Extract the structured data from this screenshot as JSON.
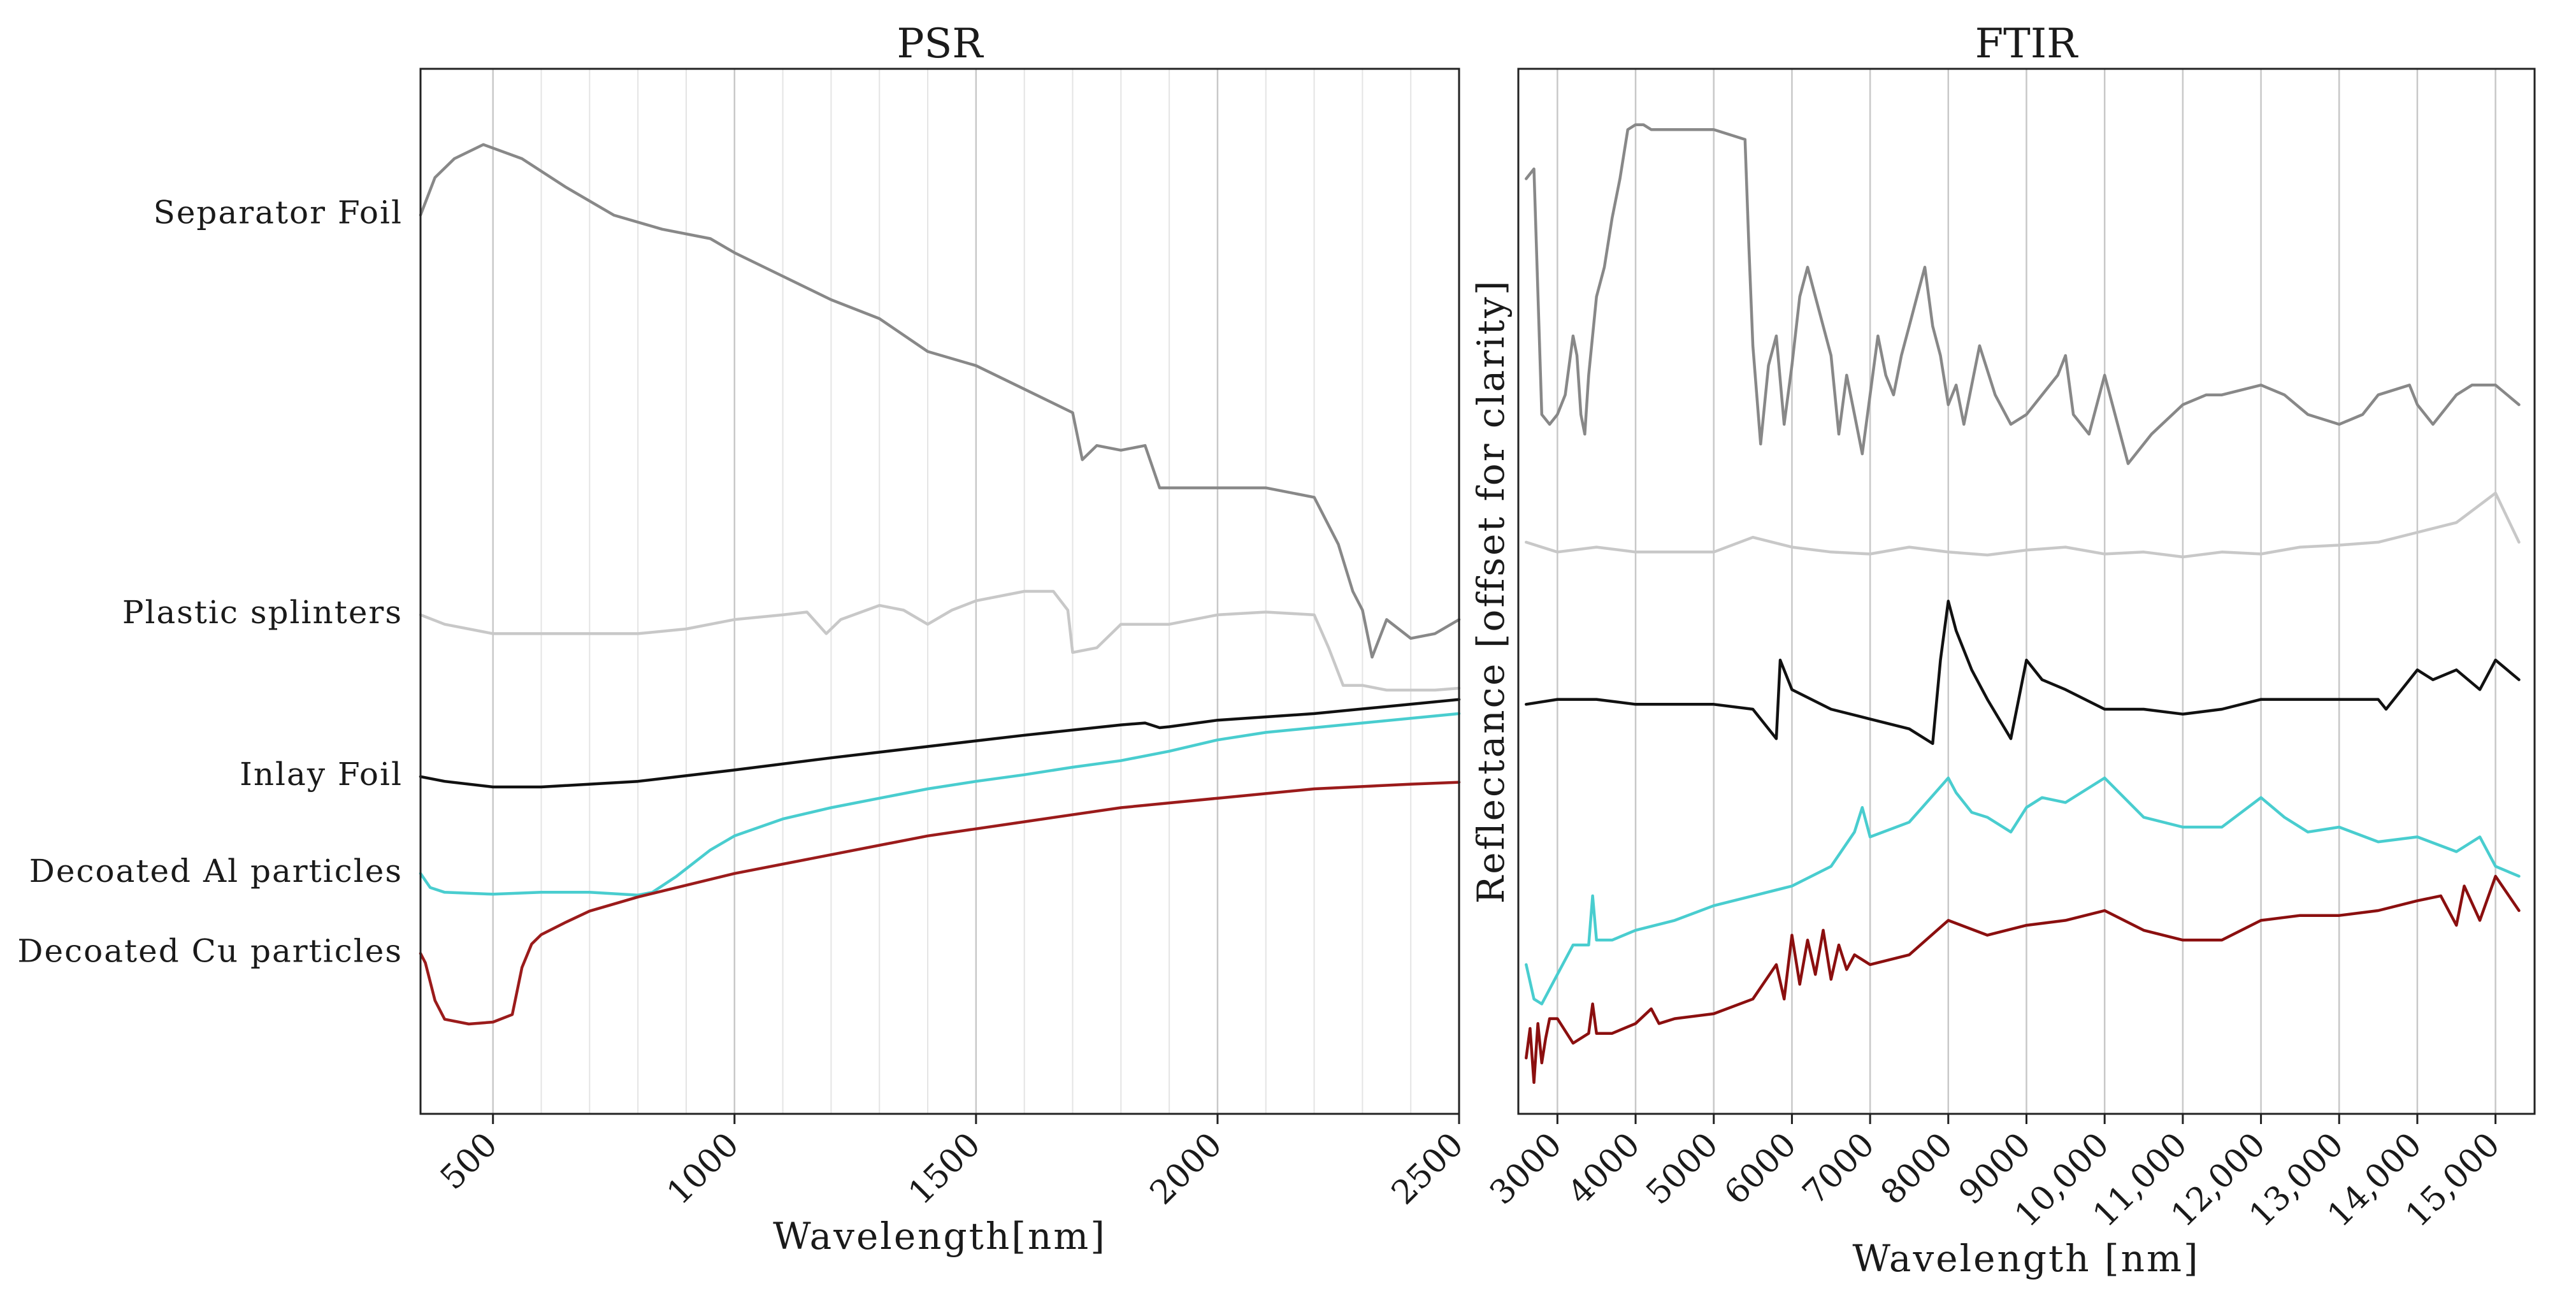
{
  "chart_data": [
    {
      "type": "line",
      "title": "PSR",
      "xlabel": "Wavelength[nm]",
      "ylabel": "",
      "xlim": [
        350,
        2500
      ],
      "ylim": [
        0,
        1
      ],
      "xticks": [
        500,
        1000,
        1500,
        2000,
        2500
      ],
      "xtick_labels": [
        "500",
        "1000",
        "1500",
        "2000",
        "2500"
      ],
      "minor_grid": [
        600,
        700,
        800,
        900,
        1100,
        1200,
        1300,
        1400,
        1600,
        1700,
        1800,
        1900,
        2100,
        2200,
        2300,
        2400
      ],
      "grid": true,
      "series": [
        {
          "name": "Separator Foil",
          "color": "#888888",
          "x": [
            350,
            380,
            420,
            480,
            560,
            650,
            750,
            850,
            950,
            1000,
            1100,
            1200,
            1300,
            1400,
            1500,
            1600,
            1700,
            1720,
            1750,
            1800,
            1850,
            1880,
            1900,
            1950,
            2000,
            2100,
            2200,
            2250,
            2280,
            2300,
            2320,
            2350,
            2400,
            2450,
            2500
          ],
          "y": [
            0.9,
            0.94,
            0.96,
            0.975,
            0.96,
            0.93,
            0.9,
            0.885,
            0.875,
            0.86,
            0.835,
            0.81,
            0.79,
            0.755,
            0.74,
            0.715,
            0.69,
            0.64,
            0.655,
            0.65,
            0.655,
            0.61,
            0.61,
            0.61,
            0.61,
            0.61,
            0.6,
            0.55,
            0.5,
            0.48,
            0.43,
            0.47,
            0.45,
            0.455,
            0.47
          ]
        },
        {
          "name": "Plastic splinters",
          "color": "#c8c8c8",
          "x": [
            350,
            400,
            500,
            600,
            700,
            800,
            900,
            1000,
            1100,
            1150,
            1190,
            1220,
            1300,
            1350,
            1400,
            1450,
            1500,
            1600,
            1660,
            1690,
            1700,
            1750,
            1800,
            1900,
            2000,
            2100,
            2200,
            2230,
            2260,
            2300,
            2350,
            2400,
            2450,
            2500
          ],
          "y": [
            0.475,
            0.465,
            0.455,
            0.455,
            0.455,
            0.455,
            0.46,
            0.47,
            0.475,
            0.478,
            0.455,
            0.47,
            0.485,
            0.48,
            0.465,
            0.48,
            0.49,
            0.5,
            0.5,
            0.48,
            0.435,
            0.44,
            0.465,
            0.465,
            0.475,
            0.478,
            0.475,
            0.44,
            0.4,
            0.4,
            0.395,
            0.395,
            0.395,
            0.397
          ]
        },
        {
          "name": "Inlay Foil",
          "color": "#111111",
          "x": [
            350,
            400,
            500,
            600,
            800,
            1000,
            1200,
            1400,
            1600,
            1800,
            1850,
            1880,
            1900,
            2000,
            2200,
            2400,
            2500
          ],
          "y": [
            0.303,
            0.298,
            0.292,
            0.292,
            0.298,
            0.31,
            0.323,
            0.335,
            0.347,
            0.358,
            0.36,
            0.355,
            0.356,
            0.363,
            0.37,
            0.38,
            0.385
          ]
        },
        {
          "name": "Decoated Al particles",
          "color": "#49cdcf",
          "x": [
            350,
            370,
            400,
            500,
            600,
            700,
            800,
            830,
            880,
            950,
            1000,
            1100,
            1200,
            1300,
            1400,
            1500,
            1600,
            1700,
            1800,
            1900,
            2000,
            2100,
            2200,
            2300,
            2400,
            2500
          ],
          "y": [
            0.2,
            0.185,
            0.18,
            0.178,
            0.18,
            0.18,
            0.177,
            0.18,
            0.197,
            0.225,
            0.24,
            0.258,
            0.27,
            0.28,
            0.29,
            0.298,
            0.305,
            0.313,
            0.32,
            0.33,
            0.342,
            0.35,
            0.355,
            0.36,
            0.365,
            0.37
          ]
        },
        {
          "name": "Decoated Cu particles",
          "color": "#9b1b1b",
          "x": [
            350,
            360,
            380,
            400,
            450,
            500,
            540,
            560,
            580,
            600,
            650,
            700,
            800,
            1000,
            1200,
            1400,
            1600,
            1800,
            2000,
            2200,
            2400,
            2500
          ],
          "y": [
            0.115,
            0.105,
            0.065,
            0.045,
            0.04,
            0.042,
            0.05,
            0.1,
            0.125,
            0.135,
            0.148,
            0.16,
            0.175,
            0.2,
            0.22,
            0.24,
            0.255,
            0.27,
            0.28,
            0.29,
            0.295,
            0.297
          ]
        }
      ]
    },
    {
      "type": "line",
      "title": "FTIR",
      "xlabel": "Wavelength [nm]",
      "ylabel": "Reflectance [offset for clarity]",
      "xlim": [
        2500,
        15500
      ],
      "ylim": [
        0,
        1
      ],
      "xticks": [
        3000,
        4000,
        5000,
        6000,
        7000,
        8000,
        9000,
        10000,
        11000,
        12000,
        13000,
        14000,
        15000
      ],
      "xtick_labels": [
        "3000",
        "4000",
        "5000",
        "6000",
        "7000",
        "8000",
        "9000",
        "10,000",
        "11,000",
        "12,000",
        "13,000",
        "14,000",
        "15,000"
      ],
      "grid": true,
      "series": [
        {
          "name": "Separator Foil",
          "color": "#888888",
          "x": [
            2600,
            2700,
            2800,
            2900,
            3000,
            3100,
            3200,
            3250,
            3300,
            3350,
            3400,
            3500,
            3600,
            3700,
            3800,
            3900,
            4000,
            4100,
            4200,
            4500,
            5000,
            5400,
            5450,
            5500,
            5600,
            5700,
            5800,
            5900,
            6000,
            6100,
            6200,
            6300,
            6400,
            6500,
            6600,
            6700,
            6800,
            6900,
            7000,
            7100,
            7200,
            7300,
            7400,
            7500,
            7600,
            7700,
            7800,
            7900,
            8000,
            8100,
            8200,
            8400,
            8600,
            8800,
            9000,
            9200,
            9400,
            9500,
            9600,
            9800,
            10000,
            10300,
            10600,
            11000,
            11300,
            11500,
            12000,
            12300,
            12600,
            13000,
            13300,
            13500,
            13900,
            14000,
            14200,
            14500,
            14700,
            15000,
            15300
          ],
          "y": [
            0.92,
            0.93,
            0.68,
            0.67,
            0.68,
            0.7,
            0.76,
            0.74,
            0.68,
            0.66,
            0.72,
            0.8,
            0.83,
            0.88,
            0.92,
            0.97,
            0.975,
            0.975,
            0.97,
            0.97,
            0.97,
            0.96,
            0.85,
            0.75,
            0.65,
            0.73,
            0.76,
            0.67,
            0.73,
            0.8,
            0.83,
            0.8,
            0.77,
            0.74,
            0.66,
            0.72,
            0.68,
            0.64,
            0.7,
            0.76,
            0.72,
            0.7,
            0.74,
            0.77,
            0.8,
            0.83,
            0.77,
            0.74,
            0.69,
            0.71,
            0.67,
            0.75,
            0.7,
            0.67,
            0.68,
            0.7,
            0.72,
            0.74,
            0.68,
            0.66,
            0.72,
            0.63,
            0.66,
            0.69,
            0.7,
            0.7,
            0.71,
            0.7,
            0.68,
            0.67,
            0.68,
            0.7,
            0.71,
            0.69,
            0.67,
            0.7,
            0.71,
            0.71,
            0.69
          ]
        },
        {
          "name": "Plastic splinters",
          "color": "#c8c8c8",
          "x": [
            2600,
            3000,
            3500,
            4000,
            4500,
            5000,
            5500,
            6000,
            6500,
            7000,
            7500,
            8000,
            8500,
            9000,
            9500,
            10000,
            10500,
            11000,
            11500,
            12000,
            12500,
            13000,
            13500,
            14000,
            14500,
            15000,
            15300
          ],
          "y": [
            0.55,
            0.54,
            0.545,
            0.54,
            0.54,
            0.54,
            0.555,
            0.545,
            0.54,
            0.538,
            0.545,
            0.54,
            0.537,
            0.542,
            0.545,
            0.538,
            0.54,
            0.535,
            0.54,
            0.538,
            0.545,
            0.547,
            0.55,
            0.56,
            0.57,
            0.6,
            0.55
          ]
        },
        {
          "name": "Inlay Foil",
          "color": "#111111",
          "x": [
            2600,
            3000,
            3500,
            4000,
            4500,
            5000,
            5500,
            5800,
            5850,
            6000,
            6500,
            7000,
            7500,
            7800,
            7900,
            8000,
            8100,
            8300,
            8500,
            8800,
            9000,
            9200,
            9500,
            10000,
            10500,
            11000,
            11500,
            12000,
            12500,
            13000,
            13500,
            13600,
            14000,
            14200,
            14500,
            14800,
            15000,
            15300
          ],
          "y": [
            0.385,
            0.39,
            0.39,
            0.385,
            0.385,
            0.385,
            0.38,
            0.35,
            0.43,
            0.4,
            0.38,
            0.37,
            0.36,
            0.345,
            0.43,
            0.49,
            0.46,
            0.42,
            0.39,
            0.35,
            0.43,
            0.41,
            0.4,
            0.38,
            0.38,
            0.375,
            0.38,
            0.39,
            0.39,
            0.39,
            0.39,
            0.38,
            0.42,
            0.41,
            0.42,
            0.4,
            0.43,
            0.41
          ]
        },
        {
          "name": "Decoated Al particles",
          "color": "#49cdcf",
          "x": [
            2600,
            2700,
            2800,
            3000,
            3200,
            3400,
            3450,
            3500,
            3700,
            4000,
            4500,
            5000,
            5500,
            6000,
            6500,
            6800,
            6900,
            7000,
            7500,
            8000,
            8100,
            8300,
            8500,
            8800,
            9000,
            9200,
            9500,
            10000,
            10500,
            11000,
            11500,
            12000,
            12300,
            12600,
            13000,
            13500,
            14000,
            14500,
            14800,
            15000,
            15300
          ],
          "y": [
            0.12,
            0.085,
            0.08,
            0.11,
            0.14,
            0.14,
            0.19,
            0.145,
            0.145,
            0.155,
            0.165,
            0.18,
            0.19,
            0.2,
            0.22,
            0.255,
            0.28,
            0.25,
            0.265,
            0.31,
            0.295,
            0.275,
            0.27,
            0.255,
            0.28,
            0.29,
            0.285,
            0.31,
            0.27,
            0.26,
            0.26,
            0.29,
            0.27,
            0.255,
            0.26,
            0.245,
            0.25,
            0.235,
            0.25,
            0.22,
            0.21
          ]
        },
        {
          "name": "Decoated Cu particles",
          "color": "#8b0f0f",
          "x": [
            2600,
            2650,
            2700,
            2750,
            2800,
            2850,
            2900,
            3000,
            3200,
            3400,
            3450,
            3500,
            3700,
            4000,
            4200,
            4300,
            4500,
            5000,
            5500,
            5800,
            5900,
            6000,
            6100,
            6200,
            6300,
            6400,
            6500,
            6600,
            6700,
            6800,
            7000,
            7500,
            8000,
            8500,
            9000,
            9500,
            10000,
            10500,
            11000,
            11500,
            12000,
            12500,
            13000,
            13500,
            14000,
            14300,
            14500,
            14600,
            14800,
            15000,
            15300
          ],
          "y": [
            0.025,
            0.055,
            0.0,
            0.06,
            0.02,
            0.045,
            0.065,
            0.065,
            0.04,
            0.05,
            0.08,
            0.05,
            0.05,
            0.06,
            0.075,
            0.06,
            0.065,
            0.07,
            0.085,
            0.12,
            0.085,
            0.15,
            0.1,
            0.145,
            0.11,
            0.155,
            0.105,
            0.14,
            0.115,
            0.13,
            0.12,
            0.13,
            0.165,
            0.15,
            0.16,
            0.165,
            0.175,
            0.155,
            0.145,
            0.145,
            0.165,
            0.17,
            0.17,
            0.175,
            0.185,
            0.19,
            0.16,
            0.2,
            0.165,
            0.21,
            0.175
          ]
        }
      ]
    }
  ]
}
